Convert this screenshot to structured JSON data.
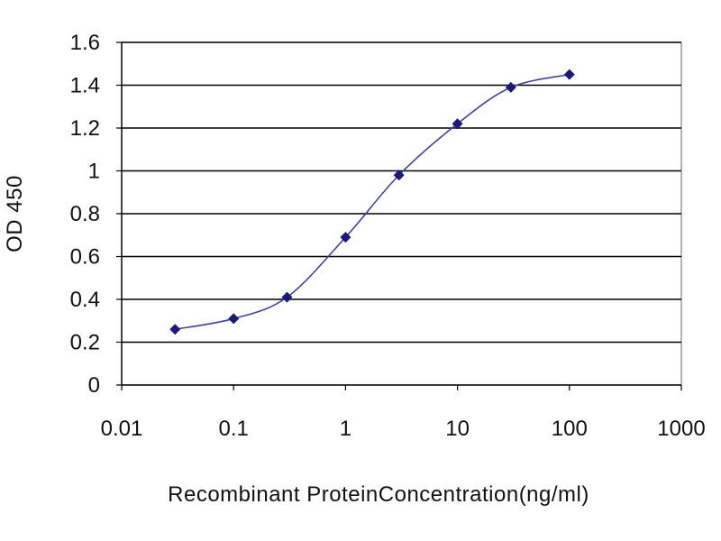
{
  "chart_data": {
    "type": "line",
    "title": "",
    "xlabel": "Recombinant ProteinConcentration(ng/ml)",
    "ylabel": "OD 450",
    "x_scale": "log",
    "xlim": [
      0.01,
      1000
    ],
    "ylim": [
      0,
      1.6
    ],
    "x_ticks": [
      "0.01",
      "0.1",
      "1",
      "10",
      "100",
      "1000"
    ],
    "y_ticks": [
      "0",
      "0.2",
      "0.4",
      "0.6",
      "0.8",
      "1",
      "1.2",
      "1.4",
      "1.6"
    ],
    "grid": "horizontal",
    "legend": "none",
    "series": [
      {
        "x": [
          0.03,
          0.1,
          0.3,
          1,
          3,
          10,
          30,
          100
        ],
        "y": [
          0.26,
          0.31,
          0.41,
          0.69,
          0.98,
          1.22,
          1.39,
          1.45
        ]
      }
    ]
  },
  "colors": {
    "line": "#4040a0",
    "marker": "#1a1a7a",
    "gridline": "#000000",
    "frame": "#808080"
  }
}
